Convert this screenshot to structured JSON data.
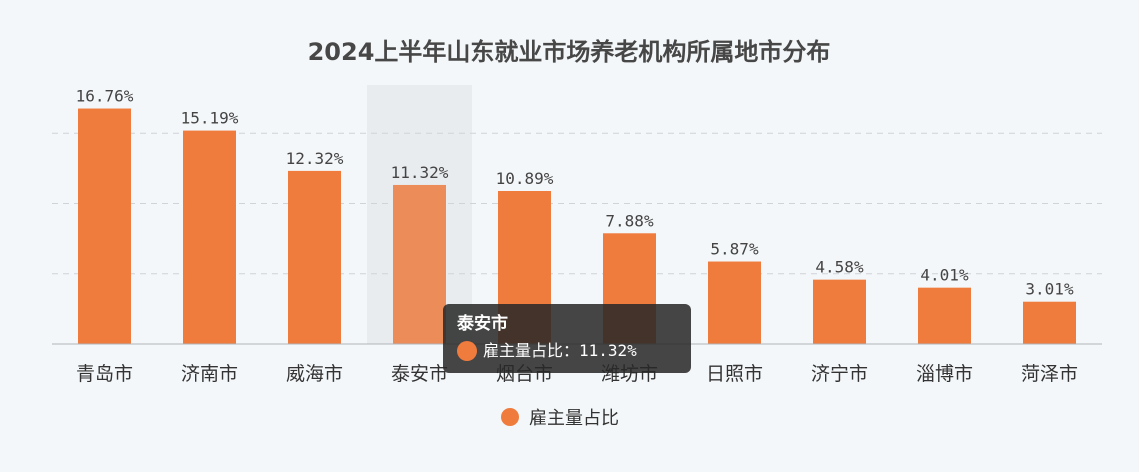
{
  "chart_data": {
    "type": "bar",
    "title": "2024上半年山东就业市场养老机构所属地市分布",
    "categories": [
      "青岛市",
      "济南市",
      "威海市",
      "泰安市",
      "烟台市",
      "潍坊市",
      "日照市",
      "济宁市",
      "淄博市",
      "菏泽市"
    ],
    "series": [
      {
        "name": "雇主量占比",
        "values": [
          16.76,
          15.19,
          12.32,
          11.32,
          10.89,
          7.88,
          5.87,
          4.58,
          4.01,
          3.01
        ],
        "labels": [
          "16.76%",
          "15.19%",
          "12.32%",
          "11.32%",
          "10.89%",
          "7.88%",
          "5.87%",
          "4.58%",
          "4.01%",
          "3.01%"
        ]
      }
    ],
    "ylim": [
      0,
      20
    ],
    "grid": true,
    "legend_position": "bottom-center",
    "highlighted_index": 3
  },
  "tooltip": {
    "title": "泰安市",
    "series_label": "雇主量占比：",
    "value_text": "11.32%"
  },
  "colors": {
    "bar": "#ef7b3d",
    "bar_highlight": "#ec8c59",
    "hover_band": "#e9ecef",
    "grid": "#cfd4d8",
    "axis": "#b0b5b9"
  }
}
